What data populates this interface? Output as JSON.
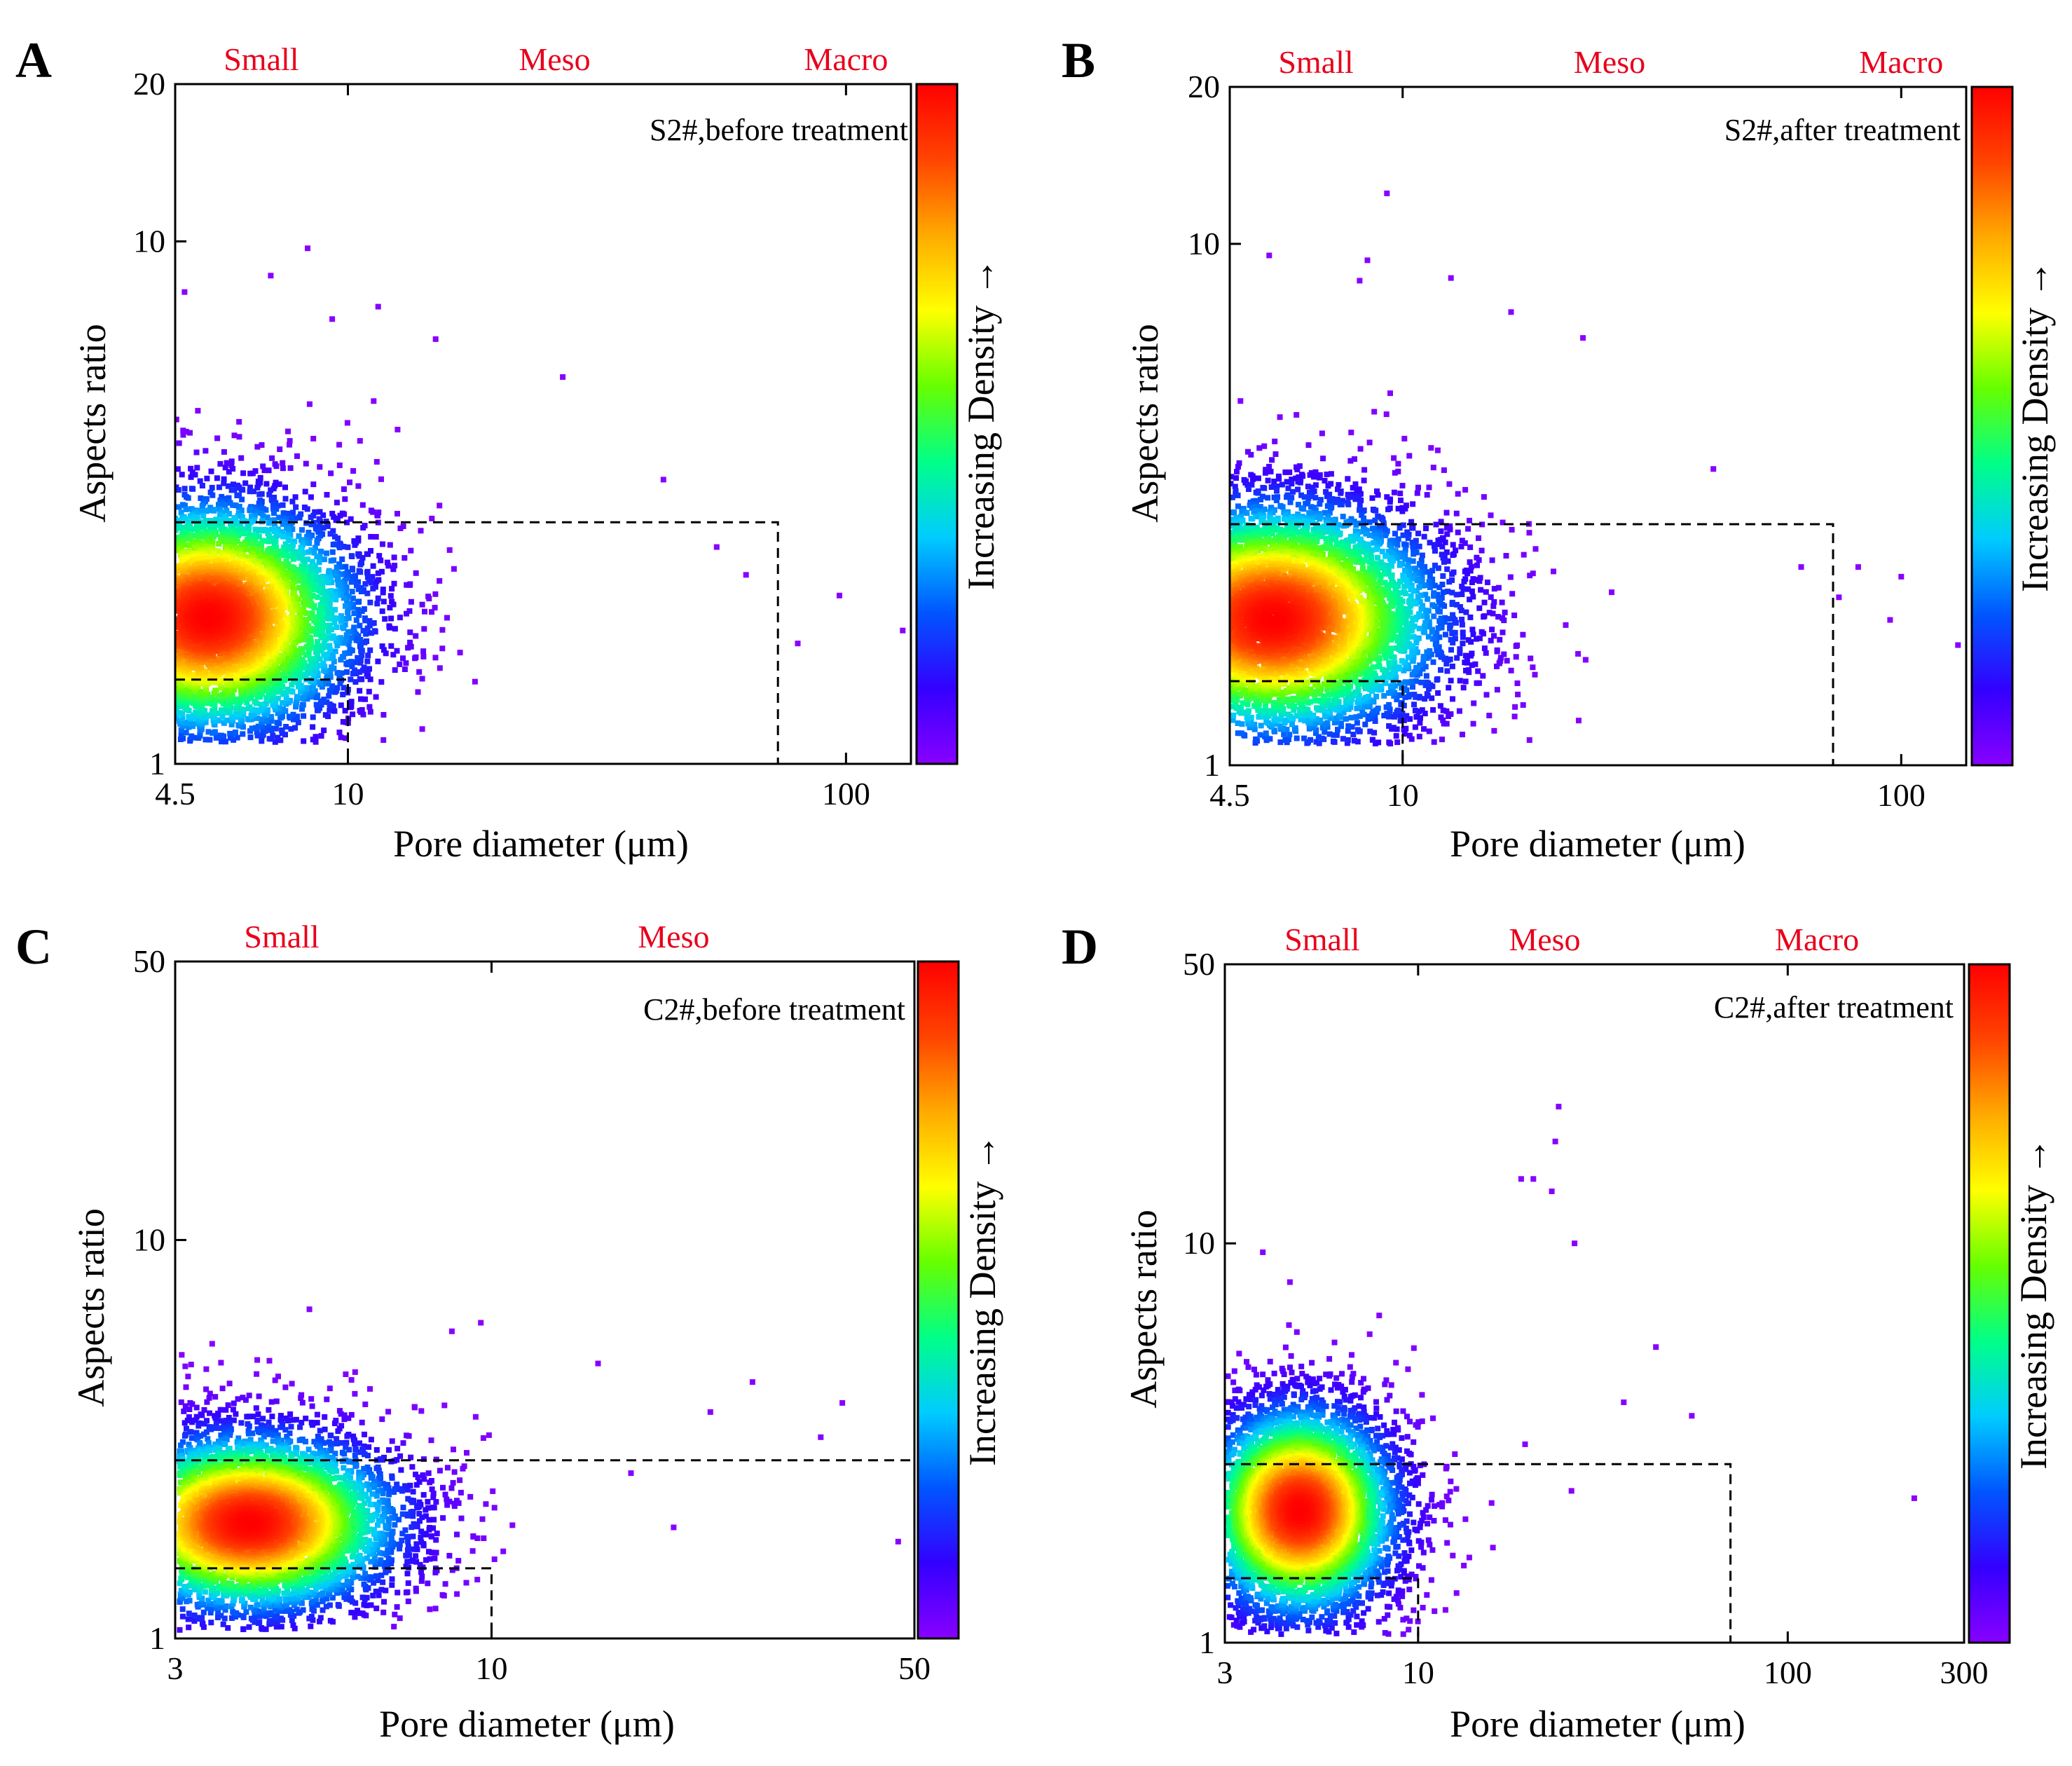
{
  "figure": {
    "colorbar_label": "Increasing Density →",
    "colormap": [
      "#8800ff",
      "#3300ff",
      "#0055ff",
      "#00ccff",
      "#00ff88",
      "#66ff00",
      "#ffff00",
      "#ffaa00",
      "#ff4400",
      "#ff0000"
    ],
    "region_label_color": "#e8001b"
  },
  "chart_data": [
    {
      "panel": "A",
      "type": "scatter",
      "annotation": "S2#,before treatment",
      "xlabel": "Pore diameter (μm)",
      "ylabel": "Aspects ratio",
      "xscale": "log",
      "yscale": "log",
      "xlim": [
        4.5,
        135
      ],
      "ylim": [
        1,
        20
      ],
      "xticks": [
        4.5,
        10,
        100
      ],
      "xtick_labels": [
        "4.5",
        "10",
        "100"
      ],
      "yticks": [
        1,
        10,
        20
      ],
      "ytick_labels": [
        "1",
        "10",
        "20"
      ],
      "region_labels": [
        {
          "text": "Small",
          "x": 6.7
        },
        {
          "text": "Meso",
          "x": 26
        },
        {
          "text": "Macro",
          "x": 100
        }
      ],
      "region_boxes": [
        {
          "x": [
            4.5,
            10
          ],
          "y": [
            1,
            1.45
          ]
        },
        {
          "x": [
            4.5,
            73
          ],
          "y": [
            1,
            2.9
          ]
        }
      ],
      "density": {
        "n": 7000,
        "seed": 11,
        "mu_log10x": 0.72,
        "sd_log10x": 0.16,
        "mu_log10y": 0.28,
        "sd_log10y": 0.12,
        "xmin": 4.5,
        "ymin": 1.1
      },
      "outliers": [
        [
          8.3,
          9.7
        ],
        [
          7.0,
          8.6
        ],
        [
          11.5,
          7.5
        ],
        [
          9.3,
          7.1
        ],
        [
          15,
          6.5
        ],
        [
          43,
          3.5
        ],
        [
          63,
          2.3
        ],
        [
          97,
          2.1
        ],
        [
          130,
          1.8
        ],
        [
          4.7,
          8.0
        ],
        [
          27,
          5.5
        ],
        [
          55,
          2.6
        ],
        [
          80,
          1.7
        ]
      ]
    },
    {
      "panel": "B",
      "type": "scatter",
      "annotation": "S2#,after treatment",
      "xlabel": "Pore diameter (μm)",
      "ylabel": "Aspects ratio",
      "xscale": "log",
      "yscale": "log",
      "xlim": [
        4.5,
        135
      ],
      "ylim": [
        1,
        20
      ],
      "xticks": [
        4.5,
        10,
        100
      ],
      "xtick_labels": [
        "4.5",
        "10",
        "100"
      ],
      "yticks": [
        1,
        10,
        20
      ],
      "ytick_labels": [
        "1",
        "10",
        "20"
      ],
      "region_labels": [
        {
          "text": "Small",
          "x": 6.7
        },
        {
          "text": "Meso",
          "x": 26
        },
        {
          "text": "Macro",
          "x": 100
        }
      ],
      "region_boxes": [
        {
          "x": [
            4.5,
            10
          ],
          "y": [
            1,
            1.45
          ]
        },
        {
          "x": [
            4.5,
            73
          ],
          "y": [
            1,
            2.9
          ]
        }
      ],
      "density": {
        "n": 7500,
        "seed": 23,
        "mu_log10x": 0.74,
        "sd_log10x": 0.18,
        "mu_log10y": 0.28,
        "sd_log10y": 0.12,
        "xmin": 4.5,
        "ymin": 1.1
      },
      "outliers": [
        [
          9.3,
          12.5
        ],
        [
          8.5,
          9.3
        ],
        [
          8.2,
          8.5
        ],
        [
          12.5,
          8.6
        ],
        [
          5.4,
          9.5
        ],
        [
          16.5,
          7.4
        ],
        [
          23,
          6.6
        ],
        [
          42,
          3.7
        ],
        [
          63,
          2.4
        ],
        [
          75,
          2.1
        ],
        [
          95,
          1.9
        ],
        [
          130,
          1.7
        ],
        [
          82,
          2.4
        ],
        [
          100,
          2.3
        ]
      ]
    },
    {
      "panel": "C",
      "type": "scatter",
      "annotation": "C2#,before treatment",
      "xlabel": "Pore diameter (μm)",
      "ylabel": "Aspects ratio",
      "xscale": "log",
      "yscale": "log",
      "xlim": [
        3,
        50
      ],
      "ylim": [
        1,
        50
      ],
      "xticks": [
        3,
        10,
        50
      ],
      "xtick_labels": [
        "3",
        "10",
        "50"
      ],
      "yticks": [
        1,
        10,
        50
      ],
      "ytick_labels": [
        "1",
        "10",
        "50"
      ],
      "region_labels": [
        {
          "text": "Small",
          "x": 4.5
        },
        {
          "text": "Meso",
          "x": 20
        }
      ],
      "region_boxes": [
        {
          "x": [
            3,
            10
          ],
          "y": [
            1,
            1.5
          ]
        },
        {
          "x": [
            3,
            50
          ],
          "y": [
            1,
            2.8
          ]
        }
      ],
      "density": {
        "n": 6500,
        "seed": 37,
        "mu_log10x": 0.6,
        "sd_log10x": 0.13,
        "mu_log10y": 0.29,
        "sd_log10y": 0.12,
        "xmin": 3.05,
        "ymin": 1.05
      },
      "outliers": [
        [
          5.0,
          6.7
        ],
        [
          9.6,
          6.2
        ],
        [
          8.6,
          5.9
        ],
        [
          4.1,
          5.0
        ],
        [
          27,
          4.4
        ],
        [
          23,
          3.7
        ],
        [
          35,
          3.2
        ],
        [
          38,
          3.9
        ],
        [
          47,
          1.75
        ],
        [
          15,
          4.9
        ],
        [
          20,
          1.9
        ],
        [
          17,
          2.6
        ]
      ]
    },
    {
      "panel": "D",
      "type": "scatter",
      "annotation": "C2#,after treatment",
      "xlabel": "Pore diameter (μm)",
      "ylabel": "Aspects ratio",
      "xscale": "log",
      "yscale": "log",
      "xlim": [
        3,
        300
      ],
      "ylim": [
        1,
        50
      ],
      "xticks": [
        3,
        10,
        100,
        300
      ],
      "xtick_labels": [
        "3",
        "10",
        "100",
        "300"
      ],
      "yticks": [
        1,
        10,
        50
      ],
      "ytick_labels": [
        "1",
        "10",
        "50"
      ],
      "region_labels": [
        {
          "text": "Small",
          "x": 5.5
        },
        {
          "text": "Meso",
          "x": 22
        },
        {
          "text": "Macro",
          "x": 120
        }
      ],
      "region_boxes": [
        {
          "x": [
            3,
            10
          ],
          "y": [
            1,
            1.45
          ]
        },
        {
          "x": [
            3,
            70
          ],
          "y": [
            1,
            2.8
          ]
        }
      ],
      "density": {
        "n": 6000,
        "seed": 51,
        "mu_log10x": 0.68,
        "sd_log10x": 0.14,
        "mu_log10y": 0.33,
        "sd_log10y": 0.14,
        "xmin": 3.05,
        "ymin": 1.05
      },
      "outliers": [
        [
          24,
          22
        ],
        [
          23.5,
          18
        ],
        [
          23,
          13.5
        ],
        [
          19,
          14.5
        ],
        [
          20.5,
          14.5
        ],
        [
          26.5,
          10
        ],
        [
          44,
          5.5
        ],
        [
          55,
          3.7
        ],
        [
          36,
          4.0
        ],
        [
          220,
          2.3
        ],
        [
          26,
          2.4
        ],
        [
          3.8,
          9.5
        ],
        [
          4.5,
          8.0
        ]
      ]
    }
  ]
}
